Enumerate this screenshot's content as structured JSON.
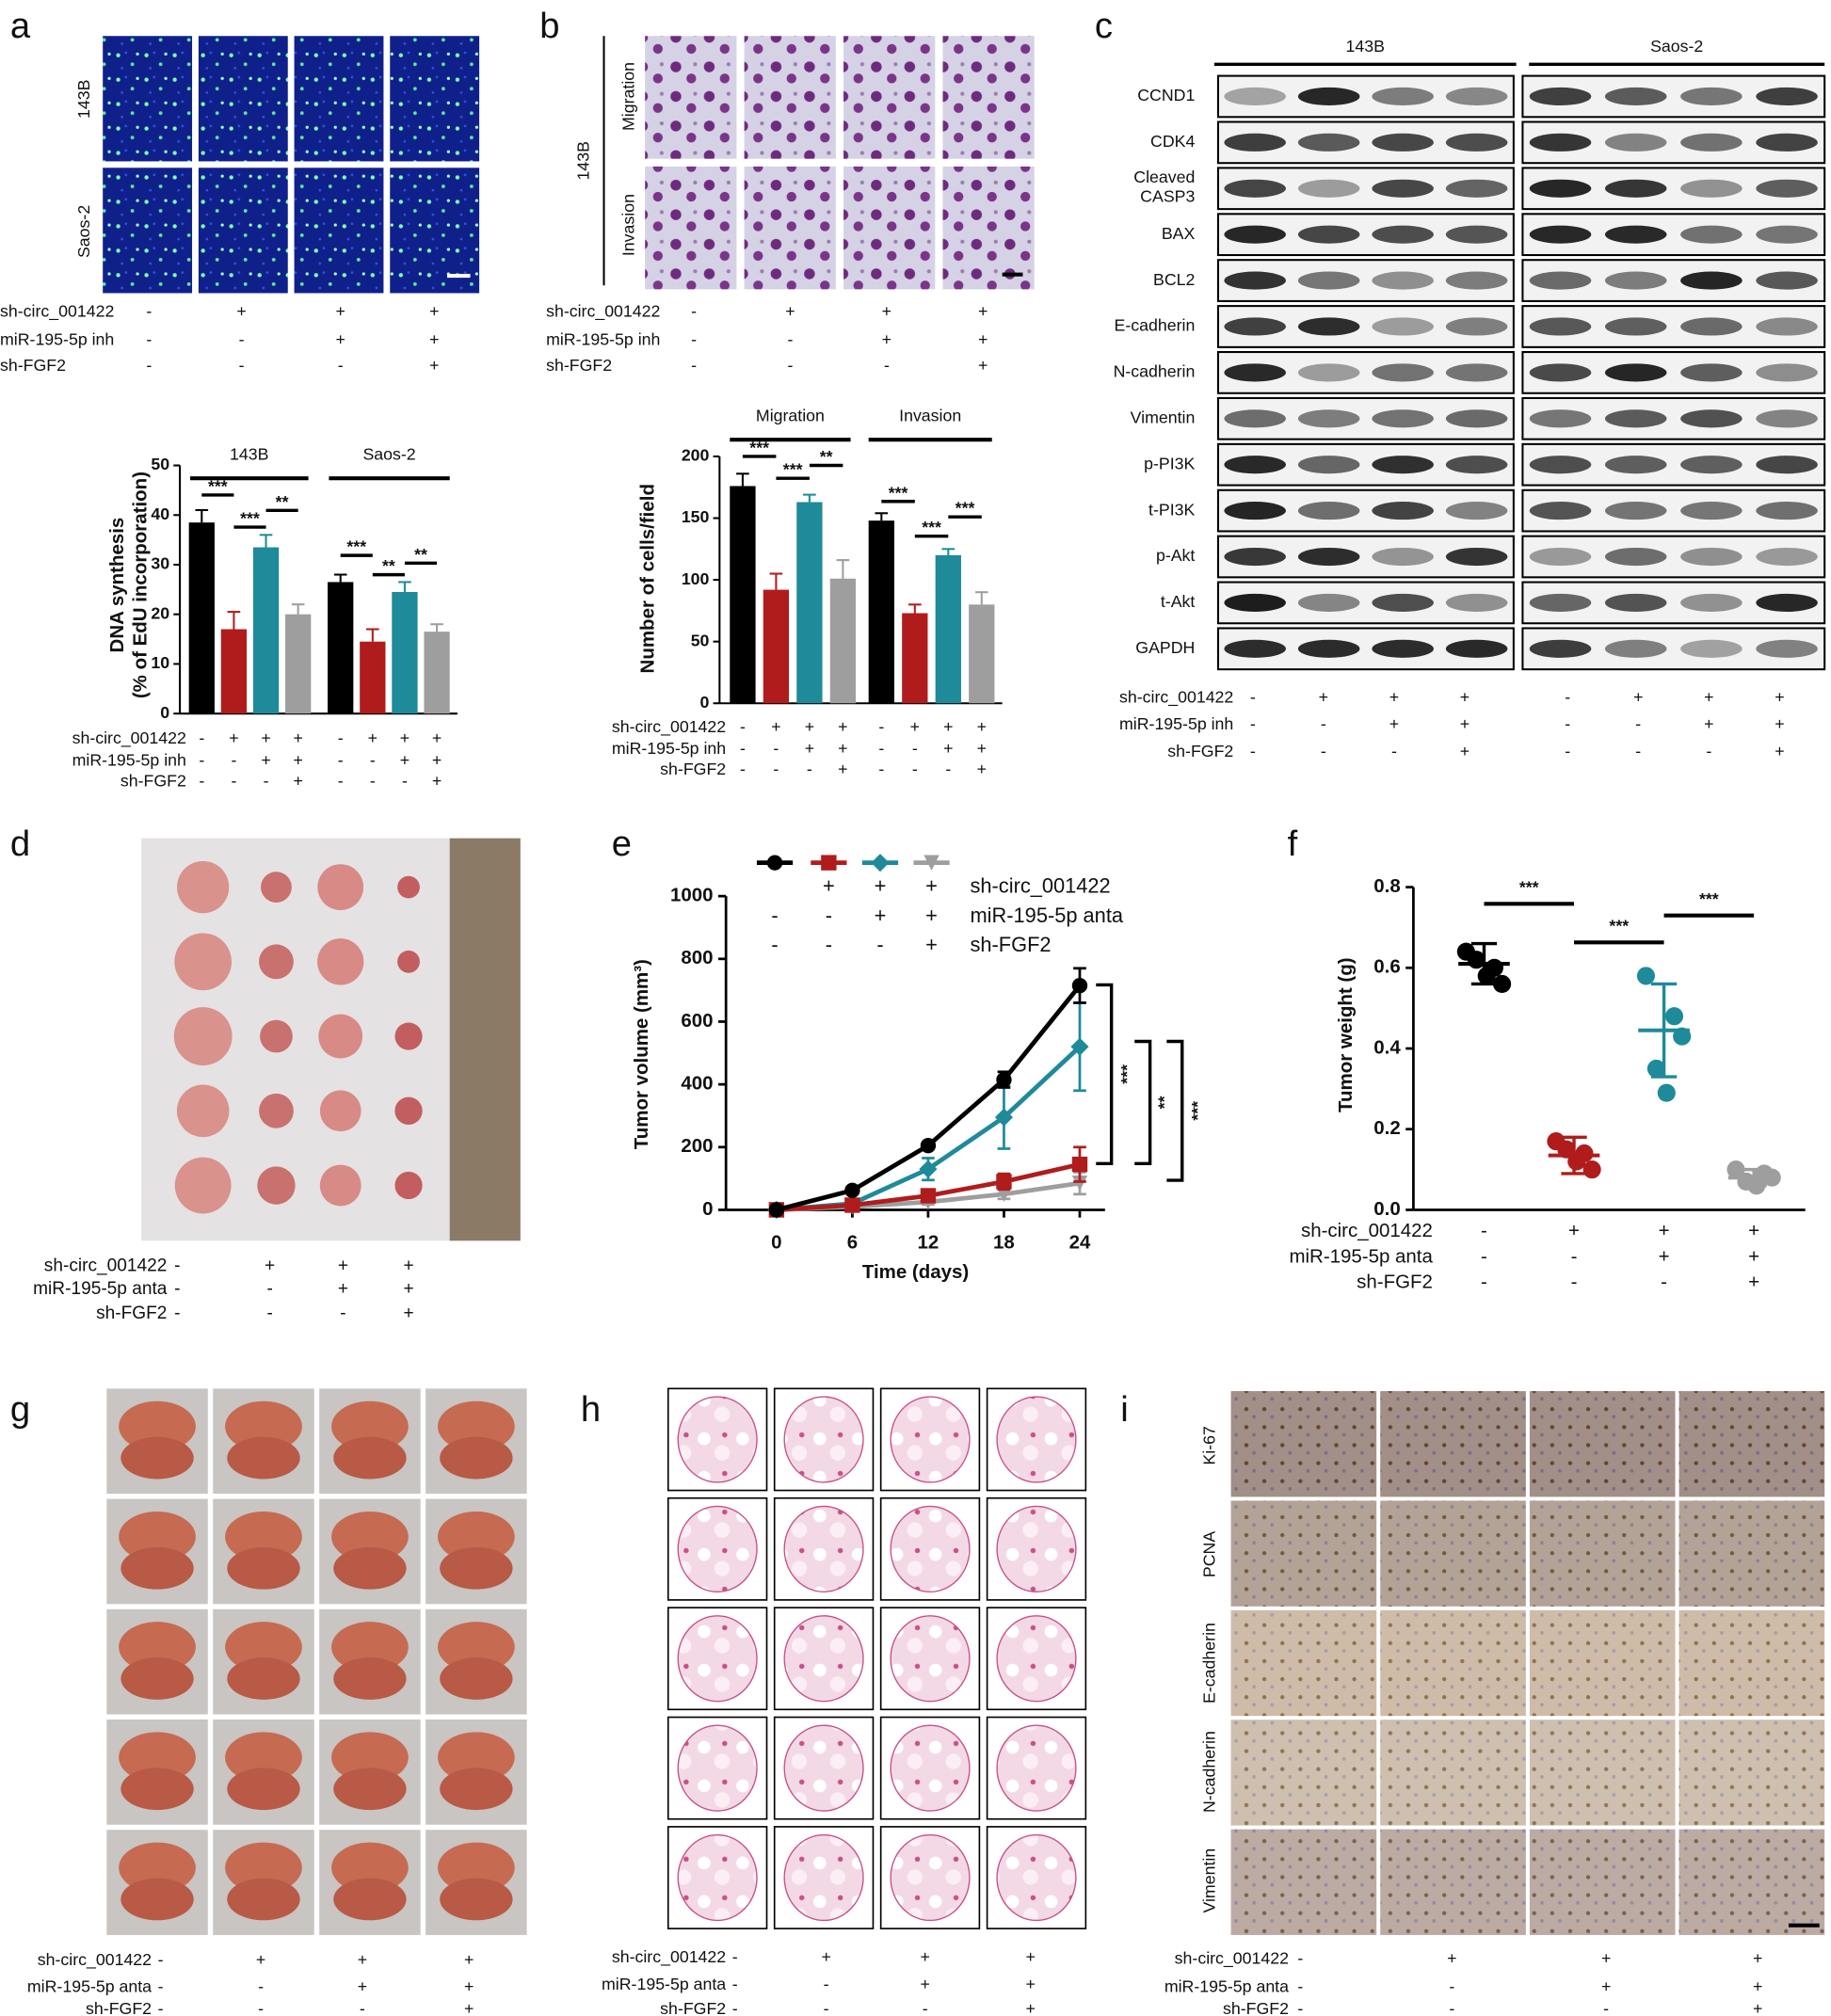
{
  "chart_data": [
    {
      "type": "bar",
      "y_label": [
        "DNA synthesis",
        "(% of EdU incorporation)"
      ],
      "groups": [
        "143B",
        "Saos-2"
      ],
      "values": [
        38.5,
        17,
        33.5,
        20,
        26.5,
        14.5,
        24.5,
        16.5
      ],
      "errors": [
        2.5,
        3.5,
        2.5,
        2,
        1.5,
        2.5,
        2,
        1.5
      ],
      "colors": [
        "#000000",
        "#b01c1c",
        "#1e8a9a",
        "#9e9e9e"
      ],
      "ylim": [
        0,
        50
      ],
      "yticks": [
        0,
        10,
        20,
        30,
        40,
        50
      ],
      "significance": [
        "***",
        "***",
        "**",
        "***",
        "**",
        "**"
      ],
      "treatments": [
        {
          "label": "sh-circ_001422",
          "signs": [
            "-",
            "+",
            "+",
            "+",
            "-",
            "+",
            "+",
            "+"
          ]
        },
        {
          "label": "miR-195-5p inh",
          "signs": [
            "-",
            "-",
            "+",
            "+",
            "-",
            "-",
            "+",
            "+"
          ]
        },
        {
          "label": "sh-FGF2",
          "signs": [
            "-",
            "-",
            "-",
            "+",
            "-",
            "-",
            "-",
            "+"
          ]
        }
      ]
    },
    {
      "type": "bar",
      "y_label": [
        "Number of cells/field"
      ],
      "groups": [
        "Migration",
        "Invasion"
      ],
      "values": [
        176,
        92,
        163,
        101,
        148,
        73,
        120,
        80
      ],
      "errors": [
        10,
        13,
        6,
        15,
        6,
        7,
        5,
        10
      ],
      "colors": [
        "#000000",
        "#b01c1c",
        "#1e8a9a",
        "#9e9e9e"
      ],
      "ylim": [
        0,
        200
      ],
      "yticks": [
        0,
        50,
        100,
        150,
        200
      ],
      "significance": [
        "***",
        "***",
        "**",
        "***",
        "***",
        "***"
      ],
      "treatments": [
        {
          "label": "sh-circ_001422",
          "signs": [
            "-",
            "+",
            "+",
            "+",
            "-",
            "+",
            "+",
            "+"
          ]
        },
        {
          "label": "miR-195-5p inh",
          "signs": [
            "-",
            "-",
            "+",
            "+",
            "-",
            "-",
            "+",
            "+"
          ]
        },
        {
          "label": "sh-FGF2",
          "signs": [
            "-",
            "-",
            "-",
            "+",
            "-",
            "-",
            "-",
            "+"
          ]
        }
      ]
    },
    {
      "type": "line",
      "x_label": "Time (days)",
      "y_label": "Tumor volume (mm³)",
      "x": [
        0,
        6,
        12,
        18,
        24
      ],
      "xlim": [
        -4,
        26
      ],
      "xticks": [
        0,
        6,
        12,
        18,
        24
      ],
      "ylim": [
        0,
        1000
      ],
      "yticks": [
        0,
        200,
        400,
        600,
        800,
        1000
      ],
      "series": [
        {
          "color": "#000000",
          "marker": "circle",
          "values": [
            0,
            62,
            205,
            415,
            715
          ],
          "errors": [
            0,
            5,
            10,
            25,
            55
          ]
        },
        {
          "color": "#b01c1c",
          "marker": "square",
          "values": [
            0,
            15,
            45,
            90,
            145
          ],
          "errors": [
            0,
            5,
            10,
            25,
            55
          ]
        },
        {
          "color": "#1e8a9a",
          "marker": "diamond",
          "values": [
            0,
            20,
            130,
            295,
            520
          ],
          "errors": [
            0,
            8,
            35,
            100,
            140
          ]
        },
        {
          "color": "#9e9e9e",
          "marker": "triangle-down",
          "values": [
            0,
            10,
            25,
            50,
            85
          ],
          "errors": [
            0,
            3,
            8,
            15,
            35
          ]
        }
      ],
      "legend_treatments": [
        {
          "label": "sh-circ_001422",
          "signs": [
            null,
            "+",
            "+",
            "+"
          ]
        },
        {
          "label": "miR-195-5p anta",
          "signs": [
            "-",
            "-",
            "+",
            "+"
          ]
        },
        {
          "label": "sh-FGF2",
          "signs": [
            "-",
            "-",
            "-",
            "+"
          ]
        }
      ],
      "significance": [
        "***",
        "**",
        "***"
      ]
    },
    {
      "type": "scatter",
      "y_label": "Tumor weight (g)",
      "ylim": [
        0,
        0.8
      ],
      "yticks": [
        {
          "value": 0,
          "label": "0.0"
        },
        0.2,
        0.4,
        0.6,
        0.8
      ],
      "series": [
        {
          "color": "#000000",
          "values": [
            0.64,
            0.6,
            0.56,
            0.62,
            0.58
          ],
          "mean": 0.61,
          "sd": 0.05
        },
        {
          "color": "#b01c1c",
          "values": [
            0.17,
            0.14,
            0.1,
            0.15,
            0.12
          ],
          "mean": 0.135,
          "sd": 0.045
        },
        {
          "color": "#1e8a9a",
          "values": [
            0.58,
            0.48,
            0.43,
            0.35,
            0.29
          ],
          "mean": 0.445,
          "sd": 0.115
        },
        {
          "color": "#9e9e9e",
          "values": [
            0.1,
            0.09,
            0.08,
            0.07,
            0.06
          ],
          "mean": 0.08,
          "sd": 0.02
        }
      ],
      "significance": [
        "***",
        "***",
        "***"
      ],
      "treatments": [
        {
          "label": "sh-circ_001422",
          "signs": [
            "-",
            "+",
            "+",
            "+"
          ]
        },
        {
          "label": "miR-195-5p anta",
          "signs": [
            "-",
            "-",
            "+",
            "+"
          ]
        },
        {
          "label": "sh-FGF2",
          "signs": [
            "-",
            "-",
            "-",
            "+"
          ]
        }
      ]
    }
  ],
  "panels": {
    "a": {
      "letter": "a",
      "row_labels": [
        "143B",
        "Saos-2"
      ],
      "treatments": [
        {
          "label": "sh-circ_001422",
          "signs": [
            "-",
            "+",
            "+",
            "+"
          ]
        },
        {
          "label": "miR-195-5p inh",
          "signs": [
            "-",
            "-",
            "+",
            "+"
          ]
        },
        {
          "label": "sh-FGF2",
          "signs": [
            "-",
            "-",
            "-",
            "+"
          ]
        }
      ]
    },
    "b": {
      "letter": "b",
      "cell_line": "143B",
      "row_labels": [
        "Migration",
        "Invasion"
      ],
      "treatments": [
        {
          "label": "sh-circ_001422",
          "signs": [
            "-",
            "+",
            "+",
            "+"
          ]
        },
        {
          "label": "miR-195-5p inh",
          "signs": [
            "-",
            "-",
            "+",
            "+"
          ]
        },
        {
          "label": "sh-FGF2",
          "signs": [
            "-",
            "-",
            "-",
            "+"
          ]
        }
      ]
    },
    "c": {
      "letter": "c",
      "cell_lines": [
        "143B",
        "Saos-2"
      ],
      "proteins": [
        "CCND1",
        "CDK4",
        [
          "Cleaved",
          "CASP3"
        ],
        "BAX",
        "BCL2",
        "E-cadherin",
        "N-cadherin",
        "Vimentin",
        "p-PI3K",
        "t-PI3K",
        "p-Akt",
        "t-Akt",
        "GAPDH"
      ],
      "treatments": [
        {
          "label": "sh-circ_001422",
          "signs": [
            "-",
            "+",
            "+",
            "+",
            "-",
            "+",
            "+",
            "+"
          ]
        },
        {
          "label": "miR-195-5p inh",
          "signs": [
            "-",
            "-",
            "+",
            "+",
            "-",
            "-",
            "+",
            "+"
          ]
        },
        {
          "label": "sh-FGF2",
          "signs": [
            "-",
            "-",
            "-",
            "+",
            "-",
            "-",
            "-",
            "+"
          ]
        }
      ]
    },
    "d": {
      "letter": "d",
      "treatments": [
        {
          "label": "sh-circ_001422",
          "signs": [
            "-",
            "+",
            "+",
            "+"
          ]
        },
        {
          "label": "miR-195-5p anta",
          "signs": [
            "-",
            "-",
            "+",
            "+"
          ]
        },
        {
          "label": "sh-FGF2",
          "signs": [
            "-",
            "-",
            "-",
            "+"
          ]
        }
      ]
    },
    "e": {
      "letter": "e"
    },
    "f": {
      "letter": "f"
    },
    "g": {
      "letter": "g",
      "treatments": [
        {
          "label": "sh-circ_001422",
          "signs": [
            "-",
            "+",
            "+",
            "+"
          ]
        },
        {
          "label": "miR-195-5p anta",
          "signs": [
            "-",
            "-",
            "+",
            "+"
          ]
        },
        {
          "label": "sh-FGF2",
          "signs": [
            "-",
            "-",
            "-",
            "+"
          ]
        }
      ]
    },
    "h": {
      "letter": "h",
      "treatments": [
        {
          "label": "sh-circ_001422",
          "signs": [
            "-",
            "+",
            "+",
            "+"
          ]
        },
        {
          "label": "miR-195-5p anta",
          "signs": [
            "-",
            "-",
            "+",
            "+"
          ]
        },
        {
          "label": "sh-FGF2",
          "signs": [
            "-",
            "-",
            "-",
            "+"
          ]
        }
      ]
    },
    "i": {
      "letter": "i",
      "row_labels": [
        "Ki-67",
        "PCNA",
        "E-cadherin",
        "N-cadherin",
        "Vimentin"
      ],
      "treatments": [
        {
          "label": "sh-circ_001422",
          "signs": [
            "-",
            "+",
            "+",
            "+"
          ]
        },
        {
          "label": "miR-195-5p anta",
          "signs": [
            "-",
            "-",
            "+",
            "+"
          ]
        },
        {
          "label": "sh-FGF2",
          "signs": [
            "-",
            "-",
            "-",
            "+"
          ]
        }
      ]
    }
  }
}
